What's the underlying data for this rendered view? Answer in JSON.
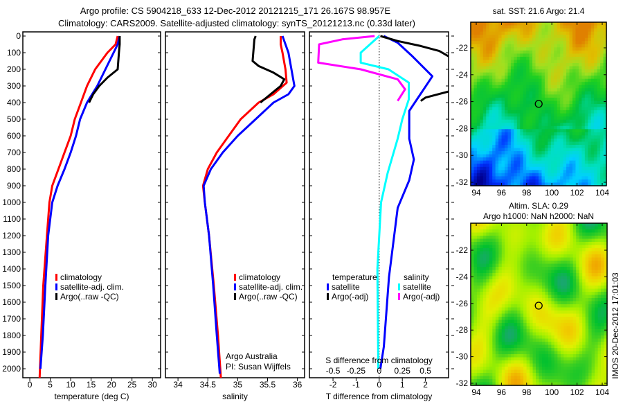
{
  "title": {
    "line1": "Argo profile: CS 5904218_633 12-Dec-2012 20121215_171 26.167S 98.957E",
    "line2": "Climatology: CARS2009. Satellite-adjusted climatology: synTS_20121213.nc (0.33d later)"
  },
  "credits": {
    "line1": "Argo Australia",
    "line2": "PI: Susan Wijffels"
  },
  "stamp": "IMOS 20-Dec-2012 17:01:03",
  "colors": {
    "climatology": "#ff0000",
    "satellite": "#0000ff",
    "argo": "#000000",
    "sal_satellite": "#00ffff",
    "sal_argo": "#ff00ff"
  },
  "chart_data": [
    {
      "type": "line",
      "id": "temperature",
      "xlabel": "temperature (deg C)",
      "xticks": [
        "0",
        "5",
        "10",
        "15",
        "20",
        "25",
        "30"
      ],
      "xtick_values": [
        0,
        5,
        10,
        15,
        20,
        25,
        30
      ],
      "xlim": [
        -1.7,
        32
      ],
      "ylabel": "",
      "yticks": [
        "0",
        "100",
        "200",
        "300",
        "400",
        "500",
        "600",
        "700",
        "800",
        "900",
        "1000",
        "1100",
        "1200",
        "1300",
        "1400",
        "1500",
        "1600",
        "1700",
        "1800",
        "1900",
        "2000"
      ],
      "ylim": [
        2054,
        -25
      ],
      "legend": [
        "climatology",
        "satellite-adj. clim.",
        "Argo(..raw -QC)"
      ],
      "series": [
        {
          "name": "climatology",
          "color": "#ff0000",
          "depth": [
            0,
            50,
            100,
            200,
            300,
            400,
            500,
            600,
            700,
            800,
            900,
            1000,
            1200,
            1500,
            1800,
            2060
          ],
          "values": [
            21.5,
            21,
            19,
            16,
            14,
            12.5,
            11,
            10,
            8.5,
            7,
            5.5,
            4.8,
            4.2,
            3.3,
            2.8,
            2.4
          ]
        },
        {
          "name": "satellite-adj. clim.",
          "color": "#0000ff",
          "depth": [
            0,
            50,
            100,
            200,
            300,
            400,
            500,
            600,
            700,
            800,
            900,
            1000,
            1200,
            1500,
            1800,
            2000
          ],
          "values": [
            22,
            21.5,
            20.5,
            18.5,
            16.5,
            14,
            12.3,
            11.3,
            10,
            8.5,
            6.8,
            5.5,
            4.5,
            3.8,
            3.2,
            2.6
          ]
        },
        {
          "name": "Argo(..raw -QC)",
          "color": "#000000",
          "depth": [
            0,
            50,
            100,
            200,
            250,
            300,
            350,
            400
          ],
          "values": [
            22,
            22,
            21.8,
            21.5,
            19,
            17,
            15.5,
            14.5
          ]
        }
      ]
    },
    {
      "type": "line",
      "id": "salinity",
      "xlabel": "salinity",
      "xticks": [
        "34",
        "34.5",
        "35",
        "35.5",
        "36"
      ],
      "xtick_values": [
        34,
        34.5,
        35,
        35.5,
        36
      ],
      "xlim": [
        33.79,
        36.12
      ],
      "ylim": [
        2054,
        -25
      ],
      "legend": [
        "climatology",
        "satellite-adj. clim.",
        "Argo(..raw -QC)"
      ],
      "series": [
        {
          "name": "climatology",
          "color": "#ff0000",
          "depth": [
            0,
            50,
            100,
            200,
            280,
            350,
            400,
            500,
            600,
            700,
            800,
            900,
            1000,
            1200,
            1500,
            1800,
            2060
          ],
          "values": [
            35.72,
            35.72,
            35.75,
            35.8,
            35.82,
            35.6,
            35.35,
            35.05,
            34.85,
            34.65,
            34.5,
            34.42,
            34.45,
            34.52,
            34.6,
            34.67,
            34.72
          ]
        },
        {
          "name": "satellite-adj. clim.",
          "color": "#0000ff",
          "depth": [
            0,
            50,
            100,
            200,
            300,
            350,
            400,
            500,
            600,
            700,
            800,
            900,
            1000,
            1200,
            1500,
            1800,
            2030
          ],
          "values": [
            35.75,
            35.8,
            35.85,
            35.9,
            35.95,
            35.85,
            35.6,
            35.3,
            35.0,
            34.75,
            34.55,
            34.43,
            34.45,
            34.52,
            34.59,
            34.65,
            34.7
          ]
        },
        {
          "name": "Argo(..raw -QC)",
          "color": "#000000",
          "depth": [
            0,
            20,
            150,
            180,
            220,
            260,
            300,
            350,
            400
          ],
          "values": [
            35.3,
            35.28,
            35.25,
            35.35,
            35.6,
            35.78,
            35.72,
            35.55,
            35.38
          ]
        }
      ]
    },
    {
      "type": "line",
      "id": "difference",
      "xlabel": "T difference from climatology",
      "xticks": [
        "-2",
        "-1",
        "0",
        "1",
        "2"
      ],
      "xtick_values": [
        -2,
        -1,
        0,
        1,
        2
      ],
      "xlim": [
        -3.02,
        3.0
      ],
      "x2label": "S difference from climatology",
      "x2ticks": [
        "-0.5",
        "-0.25",
        "0",
        "0.25",
        "0.5"
      ],
      "x2tick_values": [
        -0.5,
        -0.25,
        0,
        0.25,
        0.5
      ],
      "x2lim": [
        -0.755,
        0.75
      ],
      "ylim": [
        2054,
        -25
      ],
      "legend_groups": [
        {
          "title": "temperature",
          "items": [
            "satellite",
            "Argo(-adj)"
          ]
        },
        {
          "title": "salinity",
          "items": [
            "satellite",
            "Argo(-adj)"
          ]
        }
      ],
      "series": [
        {
          "name": "temperature satellite",
          "axis": "T",
          "color": "#0000ff",
          "depth": [
            0,
            40,
            117,
            242,
            325,
            450,
            617,
            742,
            867,
            1033,
            1450,
            1867,
            2000
          ],
          "values": [
            0.2,
            0.8,
            1.4,
            2.3,
            1.9,
            1.3,
            1.3,
            1.5,
            1.3,
            0.8,
            0.42,
            0.2,
            0.05
          ]
        },
        {
          "name": "temperature Argo(-adj)",
          "axis": "T",
          "color": "#000000",
          "depth": [
            0,
            30,
            60,
            90,
            130,
            330,
            370,
            390
          ],
          "values": [
            0.05,
            0.8,
            1.8,
            2.6,
            3.1,
            3.1,
            2.0,
            1.8
          ]
        },
        {
          "name": "salinity satellite",
          "axis": "S",
          "color": "#00ffff",
          "depth": [
            0,
            50,
            100,
            160,
            200,
            280,
            380,
            500,
            617,
            825,
            1000,
            1400,
            2000
          ],
          "values": [
            0,
            -0.1,
            -0.2,
            -0.2,
            0.1,
            0.32,
            0.32,
            0.25,
            0.2,
            0.09,
            0.02,
            -0.02,
            -0.01
          ]
        },
        {
          "name": "salinity Argo(-adj)",
          "axis": "S",
          "color": "#ff00ff",
          "depth": [
            0,
            20,
            50,
            160,
            200,
            260,
            320,
            390
          ],
          "values": [
            -0.05,
            -0.4,
            -0.65,
            -0.66,
            -0.2,
            0.2,
            0.28,
            0.2
          ]
        }
      ]
    },
    {
      "type": "heatmap",
      "id": "sst-map",
      "title": "sat. SST: 21.6 Argo: 21.4",
      "xticks": [
        "94",
        "96",
        "98",
        "100",
        "102",
        "104"
      ],
      "yticks": [
        "-22",
        "-24",
        "-26",
        "-28",
        "-30",
        "-32"
      ],
      "xlim": [
        93.4,
        104.6
      ],
      "ylim": [
        -32.26,
        -20.1
      ],
      "marker": {
        "lon": 98.957,
        "lat": -26.167
      },
      "palette": [
        "#00008f",
        "#0030ff",
        "#00d0ff",
        "#00e0c0",
        "#00c040",
        "#20d020",
        "#a0e020",
        "#e0c000",
        "#e08000"
      ]
    },
    {
      "type": "heatmap",
      "id": "sla-map",
      "title": "Altim. SLA: 0.29",
      "subtitle": "Argo h1000: NaN h2000: NaN",
      "xticks": [
        "94",
        "96",
        "98",
        "100",
        "102",
        "104"
      ],
      "yticks": [
        "-22",
        "-24",
        "-26",
        "-28",
        "-30",
        "-32"
      ],
      "xlim": [
        93.4,
        104.6
      ],
      "ylim": [
        -32.16,
        -19.97
      ],
      "marker": {
        "lon": 98.957,
        "lat": -26.167
      },
      "palette": [
        "#00e0e0",
        "#20a080",
        "#00c030",
        "#40d020",
        "#a0f000",
        "#e0f000",
        "#f0d000",
        "#f0a000"
      ]
    }
  ]
}
